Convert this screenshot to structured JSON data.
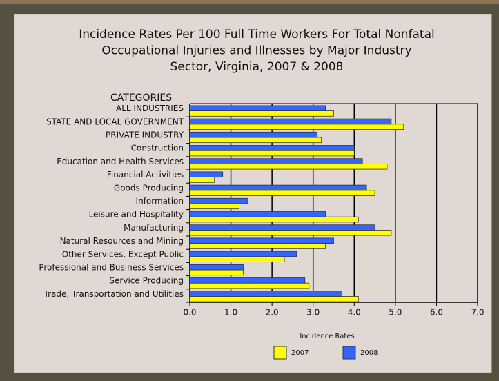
{
  "chart_data": {
    "type": "bar",
    "orientation": "horizontal",
    "title": [
      "Incidence Rates Per 100 Full Time Workers For Total Nonfatal",
      "Occupational Injuries and Illnesses by Major Industry",
      "Sector, Virginia, 2007 & 2008"
    ],
    "y_label": "CATEGORIES",
    "x_label": "Incidence Rates",
    "categories": [
      "ALL INDUSTRIES",
      "STATE AND LOCAL GOVERNMENT",
      "PRIVATE INDUSTRY",
      "Construction",
      "Education and Health Services",
      "Financial Activities",
      "Goods Producing",
      "Information",
      "Leisure and Hospitality",
      "Manufacturing",
      "Natural Resources and Mining",
      "Other Services, Except Public",
      "Professional and Business Services",
      "Service Producing",
      "Trade, Transportation and Utilities"
    ],
    "series": [
      {
        "name": "2007",
        "color": "#ffff00",
        "values": [
          3.5,
          5.2,
          3.2,
          4.0,
          4.8,
          0.6,
          4.5,
          1.2,
          4.1,
          4.9,
          3.3,
          2.3,
          1.3,
          2.9,
          4.1
        ]
      },
      {
        "name": "2008",
        "color": "#3366ff",
        "values": [
          3.3,
          4.9,
          3.1,
          4.0,
          4.2,
          0.8,
          4.3,
          1.4,
          3.3,
          4.5,
          3.5,
          2.6,
          1.3,
          2.8,
          3.7
        ]
      }
    ],
    "xlim": [
      0,
      7
    ],
    "xticks": [
      {
        "value": 0,
        "label": "0.0"
      },
      {
        "value": 1,
        "label": "1.0"
      },
      {
        "value": 2,
        "label": "2.0"
      },
      {
        "value": 3,
        "label": "3.0"
      },
      {
        "value": 4,
        "label": "4.0"
      },
      {
        "value": 5,
        "label": "5.0"
      },
      {
        "value": 6,
        "label": "6.0"
      },
      {
        "value": 7,
        "label": "7.0"
      }
    ],
    "grid": true,
    "legend": "bottom"
  }
}
